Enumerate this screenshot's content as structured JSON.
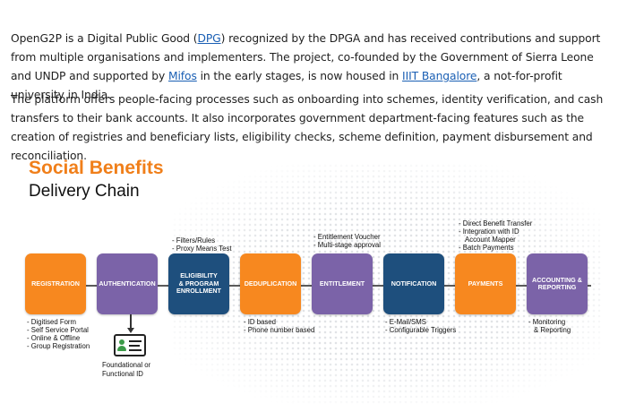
{
  "paragraph1": {
    "t1": "OpenG2P is a Digital Public Good (",
    "dpg_link": "DPG",
    "t2": ") recognized by the DPGA and has received contributions and support from multiple organisations and implementers. The project, co-founded by the Government of Sierra Leone and UNDP and supported by ",
    "mifos_link": "Mifos",
    "t3": " in the early stages, is now housed in ",
    "iiit_link": "IIIT Bangalore",
    "t4": ", a not-for-profit university in India."
  },
  "paragraph2": "The platform offers people-facing processes such as onboarding into schemes, identity verification, and cash transfers to their bank accounts. It also incorporates government department-facing features such as the creation of registries and beneficiary lists, eligibility checks, scheme definition, payment disbursement and reconciliation.",
  "figure": {
    "title": "Social Benefits",
    "subtitle": "Delivery Chain",
    "stages": [
      {
        "label": "REGISTRATION",
        "color": "#f7881f"
      },
      {
        "label": "AUTHENTICATION",
        "color": "#7b63a8"
      },
      {
        "label": "ELIGIBILITY\n& PROGRAM\nENROLLMENT",
        "color": "#1e4f7d"
      },
      {
        "label": "DEDUPLICATION",
        "color": "#f7881f"
      },
      {
        "label": "ENTITLEMENT",
        "color": "#7b63a8"
      },
      {
        "label": "NOTIFICATION",
        "color": "#1e4f7d"
      },
      {
        "label": "PAYMENTS",
        "color": "#f7881f"
      },
      {
        "label": "ACCOUNTING &\nREPORTING",
        "color": "#7b63a8"
      }
    ],
    "notes_registration": [
      "Digitised Form",
      "Self Service Portal",
      "Online & Offline",
      "Group Registration"
    ],
    "notes_eligibility": [
      "Filters/Rules",
      "Proxy Means Test"
    ],
    "notes_deduplication": [
      "ID based",
      "Phone number based"
    ],
    "notes_entitlement": [
      "Entitlement Voucher",
      "Multi-stage approval"
    ],
    "notes_notification": [
      "E-Mail/SMS",
      "Configurable Triggers"
    ],
    "notes_payments": [
      "Direct Benefit Transfer",
      "Integration with ID",
      "Account Mapper",
      "Batch Payments"
    ],
    "notes_accounting": [
      "Monitoring",
      "& Reporting"
    ],
    "id_caption": "Foundational or\nFunctional ID"
  }
}
